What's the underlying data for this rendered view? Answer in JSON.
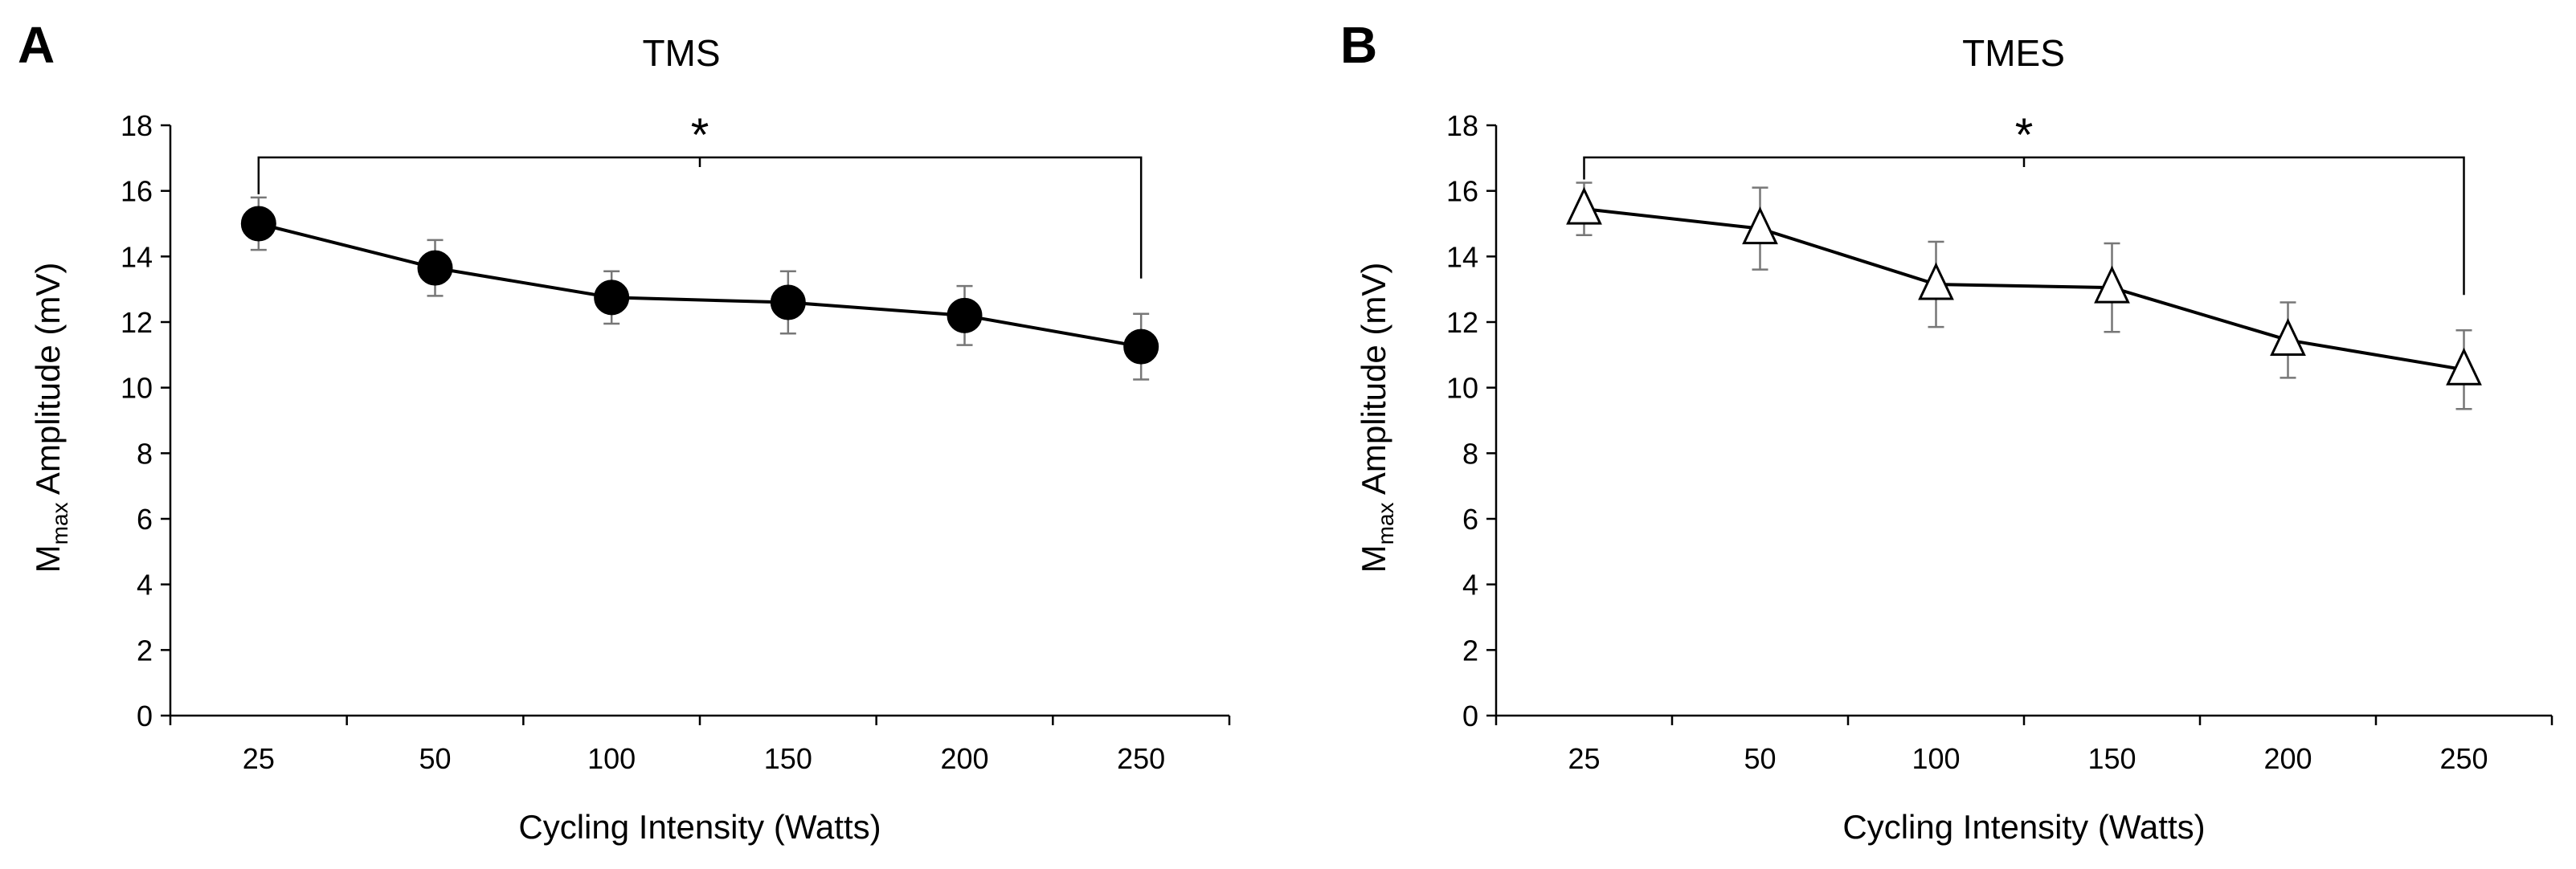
{
  "chart_data": [
    {
      "panel": "A",
      "type": "line",
      "title": "TMS",
      "xlabel": "Cycling Intensity (Watts)",
      "ylabel_main": "M",
      "ylabel_sub": "max",
      "ylabel_rest": " Amplitude (mV)",
      "categories": [
        "25",
        "50",
        "100",
        "150",
        "200",
        "250"
      ],
      "series": [
        {
          "name": "TMS",
          "marker": "filled-circle",
          "values": [
            15.0,
            13.65,
            12.75,
            12.6,
            12.2,
            11.25
          ],
          "errors": [
            0.8,
            0.85,
            0.8,
            0.95,
            0.9,
            1.0
          ]
        }
      ],
      "ylim": [
        0,
        18
      ],
      "yticks": [
        0,
        2,
        4,
        6,
        8,
        10,
        12,
        14,
        16,
        18
      ],
      "significance": {
        "from": 0,
        "to": 5,
        "label": "*"
      }
    },
    {
      "panel": "B",
      "type": "line",
      "title": "TMES",
      "xlabel": "Cycling Intensity (Watts)",
      "ylabel_main": "M",
      "ylabel_sub": "max",
      "ylabel_rest": " Amplitude (mV)",
      "categories": [
        "25",
        "50",
        "100",
        "150",
        "200",
        "250"
      ],
      "series": [
        {
          "name": "TMES",
          "marker": "open-triangle",
          "values": [
            15.45,
            14.85,
            13.15,
            13.05,
            11.45,
            10.55
          ],
          "errors": [
            0.8,
            1.25,
            1.3,
            1.35,
            1.15,
            1.2
          ]
        }
      ],
      "ylim": [
        0,
        18
      ],
      "yticks": [
        0,
        2,
        4,
        6,
        8,
        10,
        12,
        14,
        16,
        18
      ],
      "significance": {
        "from": 0,
        "to": 5,
        "label": "*"
      }
    }
  ]
}
